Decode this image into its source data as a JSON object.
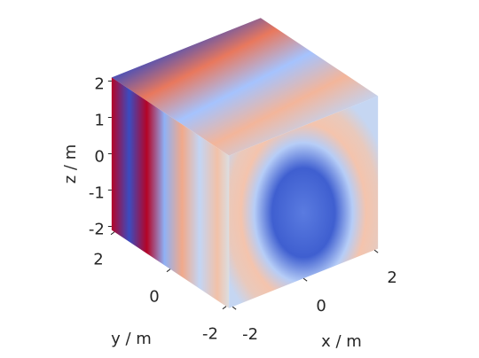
{
  "chart_data": {
    "type": "cube3d",
    "xlabel": "x / m",
    "ylabel": "y / m",
    "zlabel": "z / m",
    "xlim": [
      -2.1,
      2.1
    ],
    "ylim": [
      -2.1,
      2.1
    ],
    "zlim": [
      -2.1,
      2.1
    ],
    "xticks": [
      -2,
      0,
      2
    ],
    "yticks": [
      -2,
      0,
      2
    ],
    "zticks": [
      -2,
      -1,
      0,
      1,
      2
    ]
  }
}
